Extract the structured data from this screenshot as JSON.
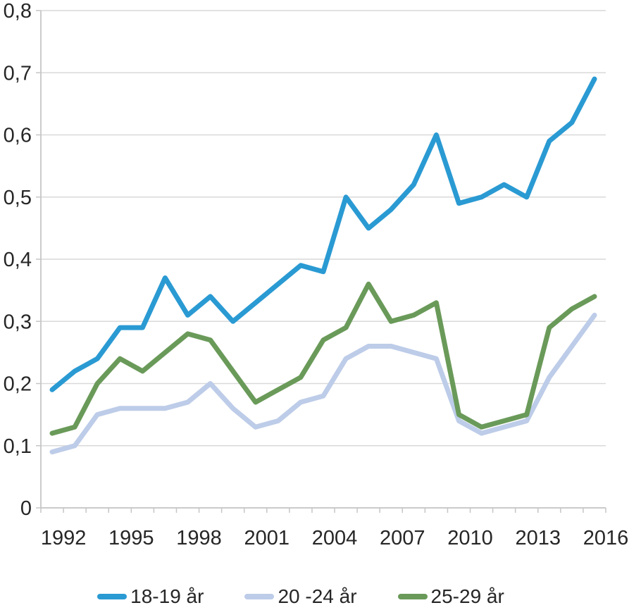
{
  "page": {
    "background": "#ffffff",
    "title": ""
  },
  "colors": {
    "grid": "#D9D9D9",
    "axis": "#C6C6C6",
    "tick": "#C6C6C6",
    "text": "#262626"
  },
  "chart_data": {
    "type": "line",
    "title": "",
    "xlabel": "",
    "ylabel": "",
    "x": [
      1992,
      1993,
      1994,
      1995,
      1996,
      1997,
      1998,
      1999,
      2000,
      2001,
      2002,
      2003,
      2004,
      2005,
      2006,
      2007,
      2008,
      2009,
      2010,
      2011,
      2012,
      2013,
      2014,
      2015,
      2016
    ],
    "x_tick_labels": [
      "1992",
      "1995",
      "1998",
      "2001",
      "2004",
      "2007",
      "2010",
      "2013",
      "2016"
    ],
    "x_tick_years": [
      1992,
      1995,
      1998,
      2001,
      2004,
      2007,
      2010,
      2013,
      2016
    ],
    "ylim": [
      0,
      0.8
    ],
    "ytick_step": 0.1,
    "y_tick_labels": [
      "0",
      "0,1",
      "0,2",
      "0,3",
      "0,4",
      "0,5",
      "0,6",
      "0,7",
      "0,8"
    ],
    "grid": "horizontal",
    "legend_position": "bottom",
    "series": [
      {
        "name": "18-19 år",
        "color": "#2A9AD3",
        "values": [
          0.19,
          0.22,
          0.24,
          0.29,
          0.29,
          0.37,
          0.31,
          0.34,
          0.3,
          0.33,
          0.36,
          0.39,
          0.38,
          0.5,
          0.45,
          0.48,
          0.52,
          0.6,
          0.49,
          0.5,
          0.52,
          0.5,
          0.59,
          0.62,
          0.69
        ]
      },
      {
        "name": "20 -24 år",
        "color": "#BDCCE8",
        "values": [
          0.09,
          0.1,
          0.15,
          0.16,
          0.16,
          0.16,
          0.17,
          0.2,
          0.16,
          0.13,
          0.14,
          0.17,
          0.18,
          0.24,
          0.26,
          0.26,
          0.25,
          0.24,
          0.14,
          0.12,
          0.13,
          0.14,
          0.21,
          0.26,
          0.31
        ]
      },
      {
        "name": "25-29 år",
        "color": "#6A9A59",
        "values": [
          0.12,
          0.13,
          0.2,
          0.24,
          0.22,
          0.25,
          0.28,
          0.27,
          0.22,
          0.17,
          0.19,
          0.21,
          0.27,
          0.29,
          0.36,
          0.3,
          0.31,
          0.33,
          0.15,
          0.13,
          0.14,
          0.15,
          0.29,
          0.32,
          0.34
        ]
      }
    ]
  }
}
